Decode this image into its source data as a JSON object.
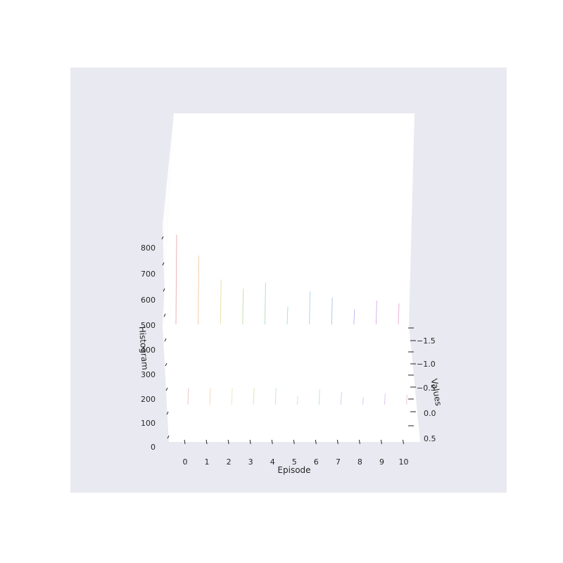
{
  "chart_data": {
    "type": "3d-histogram",
    "title": "",
    "xlabel": "Episode",
    "ylabel": "Values",
    "zlabel": "Histogram",
    "x_ticks": [
      "0",
      "1",
      "2",
      "3",
      "4",
      "5",
      "6",
      "7",
      "8",
      "9",
      "10"
    ],
    "y_ticks": [
      "−1.5",
      "−1.0",
      "−0.5",
      "0.0",
      "0.5"
    ],
    "z_ticks": [
      "0",
      "100",
      "200",
      "300",
      "400",
      "500",
      "600",
      "700",
      "800"
    ],
    "xlim": [
      -0.5,
      10.5
    ],
    "ylim": [
      -1.75,
      0.6
    ],
    "zlim": [
      0,
      900
    ],
    "grid": false,
    "legend": "none",
    "series": [
      {
        "x": 0,
        "peak": 300,
        "color": "#e8a0a0"
      },
      {
        "x": 1,
        "peak": 230,
        "color": "#f2c094"
      },
      {
        "x": 2,
        "peak": 150,
        "color": "#e3d98e"
      },
      {
        "x": 3,
        "peak": 120,
        "color": "#b8db94"
      },
      {
        "x": 4,
        "peak": 140,
        "color": "#9edcb0"
      },
      {
        "x": 5,
        "peak": 60,
        "color": "#94dccf"
      },
      {
        "x": 6,
        "peak": 110,
        "color": "#94cfe6"
      },
      {
        "x": 7,
        "peak": 90,
        "color": "#9cb8ea"
      },
      {
        "x": 8,
        "peak": 50,
        "color": "#b3a6ea"
      },
      {
        "x": 9,
        "peak": 80,
        "color": "#d0a0e4"
      },
      {
        "x": 10,
        "peak": 70,
        "color": "#e4a0cc"
      }
    ],
    "colors": {
      "background": "#e9e9f1",
      "pane": "#ffffff",
      "text": "#262626",
      "tick_mark": "#262626"
    }
  }
}
